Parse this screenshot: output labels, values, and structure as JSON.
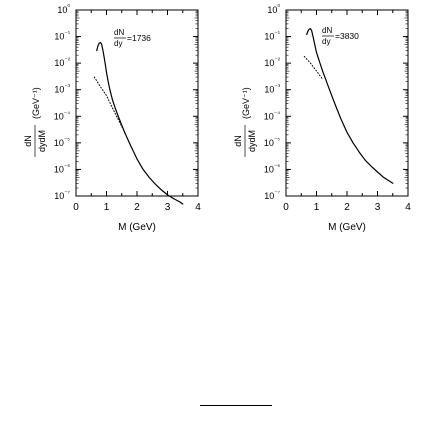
{
  "chart_data": [
    {
      "type": "line",
      "xlabel": "M (GeV)",
      "ylabel": "dN/dydM (GeV⁻¹)",
      "xlim": [
        0,
        4
      ],
      "ylim": [
        1e-07,
        1
      ],
      "yscale": "log",
      "xticks": [
        "0",
        "1",
        "2",
        "3",
        "4"
      ],
      "yticks": [
        "10⁻⁷",
        "10⁻⁶",
        "10⁻⁵",
        "10⁻⁴",
        "10⁻³",
        "10⁻²",
        "10⁻¹",
        "10⁰"
      ],
      "grid": false,
      "annotation": {
        "prefix_num": "dN",
        "prefix_den": "dy",
        "value": "=1736"
      },
      "series": [
        {
          "style": "solid",
          "color": "#000000",
          "x": [
            0.68,
            0.72,
            0.76,
            0.8,
            0.84,
            0.88,
            0.92,
            0.96,
            1.0,
            1.05,
            1.1,
            1.2,
            1.3,
            1.4,
            1.6,
            1.8,
            2.0,
            2.2,
            2.4,
            2.6,
            2.8,
            3.0,
            3.2,
            3.4,
            3.5
          ],
          "y": [
            0.03,
            0.045,
            0.056,
            0.06,
            0.052,
            0.032,
            0.017,
            0.009,
            0.0045,
            0.0022,
            0.0011,
            0.0004,
            0.00018,
            9e-05,
            2.4e-05,
            7.5e-06,
            2.5e-06,
            1e-06,
            5e-07,
            2.8e-07,
            1.7e-07,
            1.1e-07,
            8e-08,
            6e-08,
            5e-08
          ]
        },
        {
          "style": "dotted",
          "color": "#000000",
          "x": [
            0.6,
            0.8,
            1.0,
            1.2,
            1.4,
            1.6
          ],
          "y": [
            0.003,
            0.0013,
            0.0006,
            0.0002,
            7e-05,
            2.5e-05
          ]
        }
      ]
    },
    {
      "type": "line",
      "xlabel": "M (GeV)",
      "ylabel": "dN/dydM (GeV⁻¹)",
      "xlim": [
        0,
        4
      ],
      "ylim": [
        1e-07,
        1
      ],
      "yscale": "log",
      "xticks": [
        "0",
        "1",
        "2",
        "3",
        "4"
      ],
      "yticks": [
        "10⁻⁷",
        "10⁻⁶",
        "10⁻⁵",
        "10⁻⁴",
        "10⁻³",
        "10⁻²",
        "10⁻¹",
        "10⁰"
      ],
      "grid": false,
      "annotation": {
        "prefix_num": "dN",
        "prefix_den": "dy",
        "value": "=3830"
      },
      "series": [
        {
          "style": "solid",
          "color": "#000000",
          "x": [
            0.68,
            0.72,
            0.76,
            0.8,
            0.84,
            0.88,
            0.92,
            0.96,
            1.0,
            1.05,
            1.1,
            1.2,
            1.3,
            1.4,
            1.6,
            1.8,
            2.0,
            2.2,
            2.4,
            2.6,
            2.8,
            3.0,
            3.2,
            3.5
          ],
          "y": [
            0.12,
            0.16,
            0.19,
            0.2,
            0.17,
            0.11,
            0.065,
            0.04,
            0.025,
            0.017,
            0.011,
            0.005,
            0.0025,
            0.0012,
            0.0003,
            8e-05,
            2.5e-05,
            1e-05,
            4.5e-06,
            2.2e-06,
            1.3e-06,
            8e-07,
            5e-07,
            3e-07
          ]
        },
        {
          "style": "dotted",
          "color": "#000000",
          "x": [
            0.6,
            0.8,
            1.0,
            1.2
          ],
          "y": [
            0.018,
            0.01,
            0.005,
            0.0025
          ]
        }
      ]
    }
  ]
}
